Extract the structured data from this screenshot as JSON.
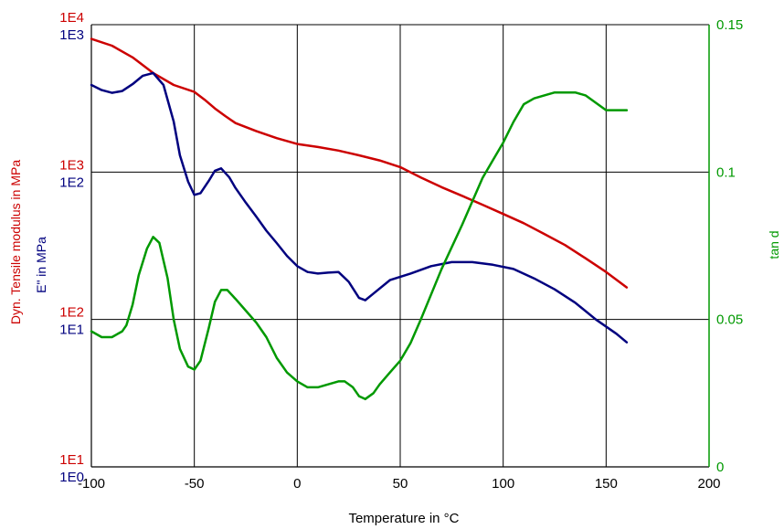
{
  "chart_data": {
    "type": "line",
    "xlabel": "Temperature in °C",
    "ylabel_left_primary": "Dyn. Tensile modulus in MPa",
    "ylabel_left_secondary": "E\" in MPa",
    "ylabel_right": "tan d",
    "xlim": [
      -100,
      200
    ],
    "x_ticks": [
      -100,
      -50,
      0,
      50,
      100,
      150,
      200
    ],
    "x_tick_labels": [
      "-100",
      "-50",
      "0",
      "50",
      "100",
      "150",
      "200"
    ],
    "y_left_primary": {
      "scale": "log",
      "range": [
        10,
        10000
      ],
      "ticks": [
        10,
        100,
        1000,
        10000
      ],
      "tick_labels": [
        "1E1",
        "1E2",
        "1E3",
        "1E4"
      ]
    },
    "y_left_secondary": {
      "scale": "log",
      "range": [
        1,
        1000
      ],
      "ticks": [
        1,
        10,
        100,
        1000
      ],
      "tick_labels": [
        "1E0",
        "1E1",
        "1E2",
        "1E3"
      ]
    },
    "y_right": {
      "scale": "linear",
      "range": [
        0,
        0.15
      ],
      "ticks": [
        0,
        0.05,
        0.1,
        0.15
      ],
      "tick_labels": [
        "0",
        "0.05",
        "0.1",
        "0.15"
      ]
    },
    "grid": true,
    "colors": {
      "modulus": "#cc0000",
      "loss": "#00007f",
      "tand": "#009900",
      "grid": "#000000"
    },
    "series": [
      {
        "key": "modulus",
        "axis": "left_primary",
        "x": [
          -100,
          -90,
          -80,
          -70,
          -60,
          -50,
          -45,
          -40,
          -35,
          -30,
          -20,
          -10,
          0,
          10,
          20,
          30,
          40,
          50,
          60,
          70,
          80,
          90,
          100,
          110,
          120,
          130,
          140,
          150,
          160
        ],
        "y": [
          8000,
          7200,
          6000,
          4700,
          3900,
          3500,
          3100,
          2700,
          2400,
          2150,
          1900,
          1700,
          1550,
          1480,
          1400,
          1300,
          1200,
          1080,
          920,
          790,
          690,
          600,
          520,
          450,
          380,
          320,
          260,
          210,
          165
        ]
      },
      {
        "key": "loss",
        "axis": "left_secondary",
        "x": [
          -100,
          -95,
          -90,
          -85,
          -80,
          -75,
          -70,
          -65,
          -60,
          -57,
          -53,
          -50,
          -47,
          -43,
          -40,
          -37,
          -33,
          -30,
          -25,
          -20,
          -15,
          -10,
          -5,
          0,
          5,
          10,
          15,
          20,
          25,
          30,
          33,
          37,
          45,
          55,
          65,
          75,
          85,
          95,
          105,
          115,
          125,
          135,
          145,
          155,
          160
        ],
        "y": [
          390,
          360,
          345,
          355,
          395,
          450,
          470,
          390,
          220,
          130,
          86,
          70,
          72,
          87,
          102,
          106,
          92,
          78,
          62,
          50,
          40,
          33,
          27,
          23,
          21,
          20.5,
          20.8,
          21,
          18,
          14,
          13.5,
          15,
          18.5,
          20.5,
          23,
          24.5,
          24.5,
          23.5,
          22,
          19,
          16,
          13,
          10,
          8,
          7
        ]
      },
      {
        "key": "tand",
        "axis": "right",
        "x": [
          -100,
          -95,
          -90,
          -85,
          -83,
          -80,
          -77,
          -73,
          -70,
          -67,
          -63,
          -60,
          -57,
          -53,
          -50,
          -47,
          -43,
          -40,
          -37,
          -34,
          -30,
          -25,
          -20,
          -15,
          -10,
          -5,
          0,
          5,
          10,
          15,
          20,
          23,
          27,
          30,
          33,
          37,
          40,
          45,
          50,
          55,
          60,
          70,
          80,
          90,
          95,
          100,
          105,
          110,
          115,
          120,
          125,
          130,
          135,
          140,
          150,
          160
        ],
        "y": [
          0.046,
          0.044,
          0.044,
          0.046,
          0.048,
          0.055,
          0.065,
          0.074,
          0.078,
          0.076,
          0.064,
          0.05,
          0.04,
          0.034,
          0.033,
          0.036,
          0.047,
          0.056,
          0.06,
          0.06,
          0.057,
          0.053,
          0.049,
          0.044,
          0.037,
          0.032,
          0.029,
          0.027,
          0.027,
          0.028,
          0.029,
          0.029,
          0.027,
          0.024,
          0.023,
          0.025,
          0.028,
          0.032,
          0.036,
          0.042,
          0.05,
          0.067,
          0.082,
          0.098,
          0.104,
          0.11,
          0.117,
          0.123,
          0.125,
          0.126,
          0.127,
          0.127,
          0.127,
          0.126,
          0.121,
          0.121
        ]
      }
    ]
  }
}
